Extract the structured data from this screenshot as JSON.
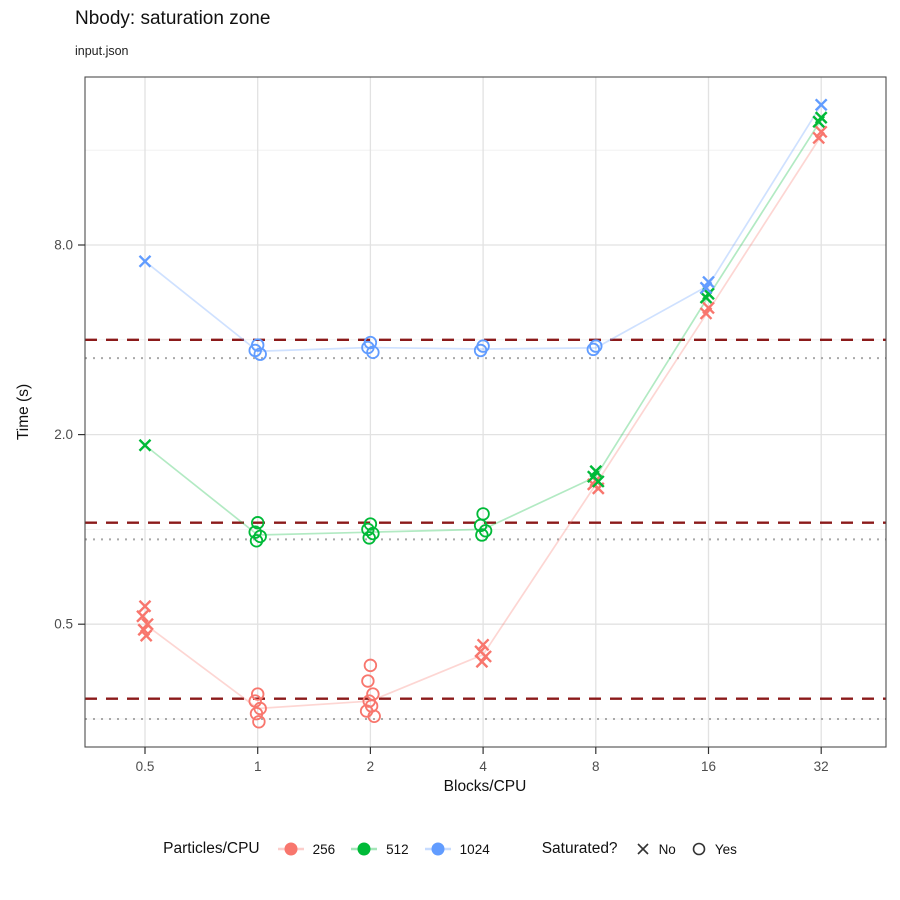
{
  "chart_data": {
    "type": "scatter",
    "title": "Nbody: saturation zone",
    "subtitle": "input.json",
    "xlabel": "Blocks/CPU",
    "ylabel": "Time (s)",
    "x_scale": "log2",
    "y_scale": "log2",
    "x_ticks": [
      0.5,
      1,
      2,
      4,
      8,
      16,
      32
    ],
    "x_tick_labels": [
      "0.5",
      "1",
      "2",
      "4",
      "8",
      "16",
      "32"
    ],
    "y_ticks": [
      0.5,
      2.0,
      8.0
    ],
    "y_tick_labels": [
      "0.5",
      "2.0",
      "8.0"
    ],
    "y_minor_gridlines": [
      0.25,
      1,
      4,
      16
    ],
    "grid_color": "#e2e2e2",
    "minor_grid_color": "#efefef",
    "panel_border_color": "#4d4d4d",
    "tick_color": "#333333",
    "tick_label_color": "#4d4d4d",
    "hlines": {
      "dashed": {
        "color": "#8B1A1A",
        "style": "dashed",
        "values": [
          4.0,
          1.05,
          0.29
        ]
      },
      "dotted": {
        "color": "#a9a9a9",
        "style": "dotted",
        "values": [
          3.5,
          0.93,
          0.25
        ]
      }
    },
    "series": [
      {
        "name": "256",
        "color": "#F8766D",
        "line": [
          0.5,
          0.27,
          0.285,
          0.4,
          1.39,
          4.95,
          17.8
        ],
        "groups": [
          {
            "x": 0.5,
            "saturated": false,
            "values": [
              0.57,
              0.53,
              0.5,
              0.48,
              0.46
            ]
          },
          {
            "x": 1,
            "saturated": true,
            "values": [
              0.3,
              0.285,
              0.27,
              0.26,
              0.245
            ]
          },
          {
            "x": 2,
            "saturated": true,
            "values": [
              0.37,
              0.33,
              0.3,
              0.285,
              0.275,
              0.265,
              0.255
            ]
          },
          {
            "x": 4,
            "saturated": false,
            "values": [
              0.43,
              0.41,
              0.395,
              0.38
            ]
          },
          {
            "x": 8,
            "saturated": false,
            "values": [
              1.43,
              1.39,
              1.35
            ]
          },
          {
            "x": 16,
            "saturated": false,
            "values": [
              5.05,
              4.85
            ]
          },
          {
            "x": 32,
            "saturated": false,
            "values": [
              18.3,
              17.5
            ]
          }
        ]
      },
      {
        "name": "512",
        "color": "#00BA38",
        "line": [
          1.85,
          0.96,
          0.98,
          1.0,
          1.47,
          5.5,
          20.0
        ],
        "groups": [
          {
            "x": 0.5,
            "saturated": false,
            "values": [
              1.85
            ]
          },
          {
            "x": 1,
            "saturated": true,
            "values": [
              1.05,
              0.98,
              0.95,
              0.92
            ]
          },
          {
            "x": 2,
            "saturated": true,
            "values": [
              1.04,
              1.0,
              0.97,
              0.94
            ]
          },
          {
            "x": 4,
            "saturated": true,
            "values": [
              1.12,
              1.03,
              0.99,
              0.96
            ]
          },
          {
            "x": 8,
            "saturated": false,
            "values": [
              1.53,
              1.47,
              1.42
            ]
          },
          {
            "x": 16,
            "saturated": false,
            "values": [
              5.6,
              5.45
            ]
          },
          {
            "x": 32,
            "saturated": false,
            "values": [
              20.3,
              19.7
            ]
          }
        ]
      },
      {
        "name": "1024",
        "color": "#619CFF",
        "line": [
          7.1,
          3.68,
          3.78,
          3.74,
          3.77,
          5.95,
          22.3
        ],
        "groups": [
          {
            "x": 0.5,
            "saturated": false,
            "values": [
              7.1
            ]
          },
          {
            "x": 1,
            "saturated": true,
            "values": [
              3.85,
              3.7,
              3.6
            ]
          },
          {
            "x": 2,
            "saturated": true,
            "values": [
              3.92,
              3.78,
              3.65
            ]
          },
          {
            "x": 4,
            "saturated": true,
            "values": [
              3.82,
              3.7
            ]
          },
          {
            "x": 8,
            "saturated": true,
            "values": [
              3.82,
              3.73
            ]
          },
          {
            "x": 16,
            "saturated": false,
            "values": [
              6.1,
              5.85
            ]
          },
          {
            "x": 32,
            "saturated": false,
            "values": [
              22.3
            ]
          }
        ]
      }
    ],
    "legend": {
      "series_title": "Particles/CPU",
      "shape_title": "Saturated?",
      "shapes": [
        {
          "marker": "x",
          "label": "No"
        },
        {
          "marker": "o",
          "label": "Yes"
        }
      ]
    }
  }
}
